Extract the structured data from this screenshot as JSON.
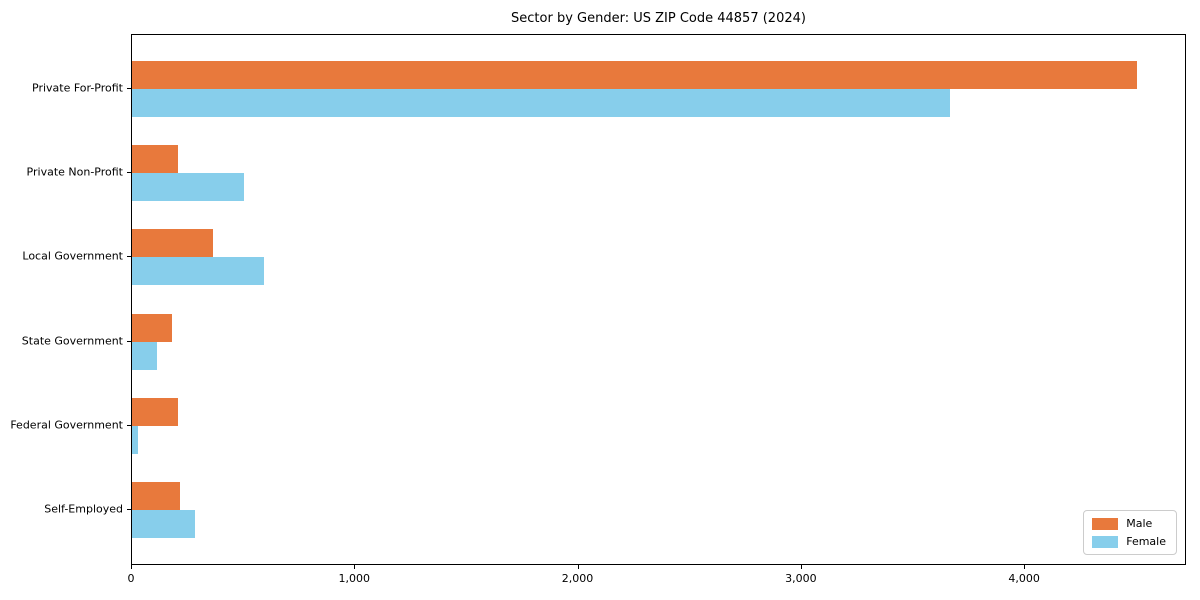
{
  "title": "Sector by Gender: US ZIP Code 44857 (2024)",
  "chart_data": {
    "type": "bar",
    "orientation": "horizontal",
    "title": "Sector by Gender: US ZIP Code 44857 (2024)",
    "categories": [
      "Private For-Profit",
      "Private Non-Profit",
      "Local Government",
      "State Government",
      "Federal Government",
      "Self-Employed"
    ],
    "series": [
      {
        "name": "Male",
        "color": "#E8793C",
        "values": [
          4500,
          205,
          365,
          180,
          205,
          215
        ]
      },
      {
        "name": "Female",
        "color": "#87CEEB",
        "values": [
          3665,
          500,
          590,
          110,
          27,
          280
        ]
      }
    ],
    "xlabel": "",
    "ylabel": "",
    "xlim": [
      0,
      4725
    ],
    "xticks": [
      0,
      1000,
      2000,
      3000,
      4000
    ],
    "xtick_labels": [
      "0",
      "1,000",
      "2,000",
      "3,000",
      "4,000"
    ],
    "grid": false,
    "legend_position": "lower right",
    "legend_entries": [
      "Male",
      "Female"
    ]
  },
  "colors": {
    "male": "#E8793C",
    "female": "#87CEEB",
    "axis": "#000000",
    "legend_border": "#cccccc",
    "background": "#ffffff"
  }
}
